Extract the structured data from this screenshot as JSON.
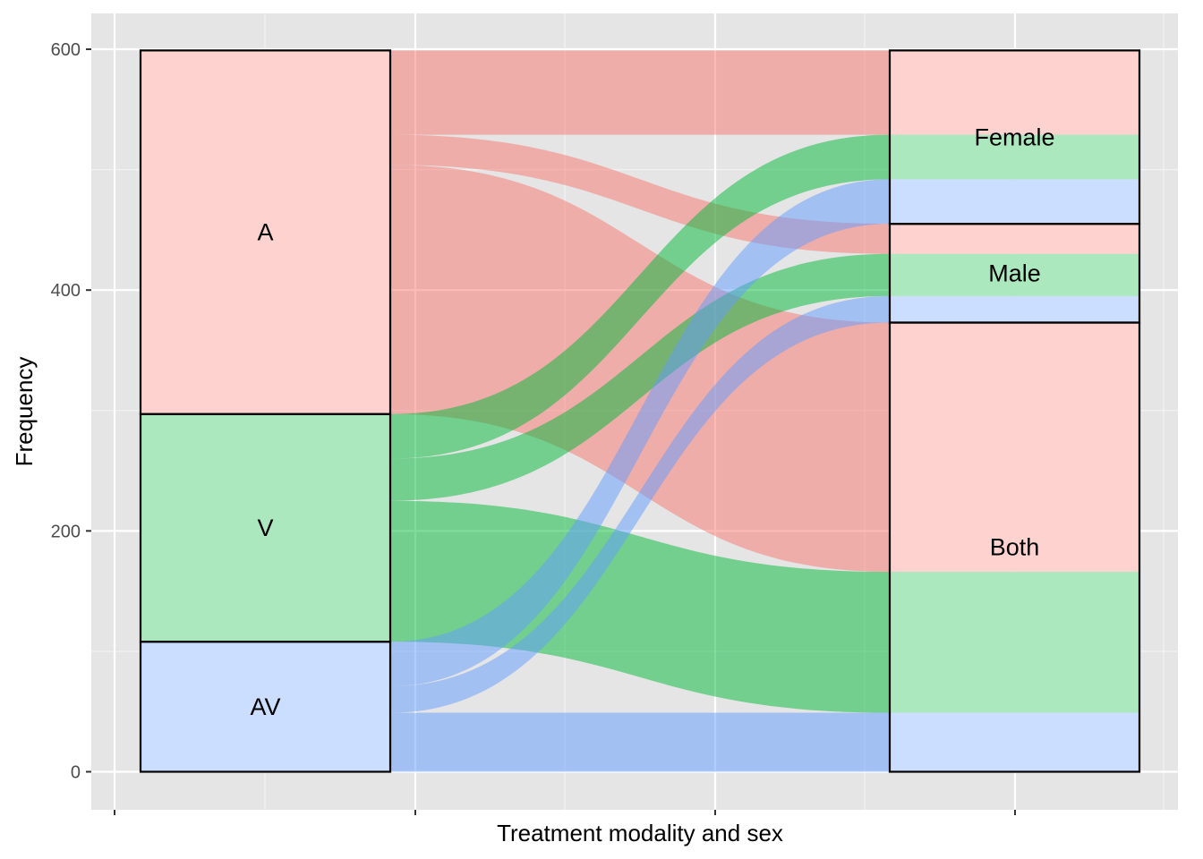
{
  "chart_data": {
    "type": "alluvial",
    "xlabel": "Treatment modality and sex",
    "ylabel": "Frequency",
    "ylim": [
      -36,
      627
    ],
    "yticks": [
      0,
      200,
      400,
      600
    ],
    "grid": true,
    "legend": "none",
    "axes": [
      {
        "strata": [
          {
            "name": "A",
            "color": "#f8766d"
          },
          {
            "name": "V",
            "color": "#00ba38"
          },
          {
            "name": "AV",
            "color": "#619cff"
          }
        ]
      },
      {
        "strata": [
          {
            "name": "Female"
          },
          {
            "name": "Male"
          },
          {
            "name": "Both"
          }
        ]
      }
    ],
    "flows": [
      {
        "from": "A",
        "to": "Female",
        "value": 70
      },
      {
        "from": "A",
        "to": "Male",
        "value": 25
      },
      {
        "from": "A",
        "to": "Both",
        "value": 207
      },
      {
        "from": "V",
        "to": "Female",
        "value": 37
      },
      {
        "from": "V",
        "to": "Male",
        "value": 35
      },
      {
        "from": "V",
        "to": "Both",
        "value": 117
      },
      {
        "from": "AV",
        "to": "Female",
        "value": 37
      },
      {
        "from": "AV",
        "to": "Male",
        "value": 22
      },
      {
        "from": "AV",
        "to": "Both",
        "value": 49
      }
    ]
  }
}
